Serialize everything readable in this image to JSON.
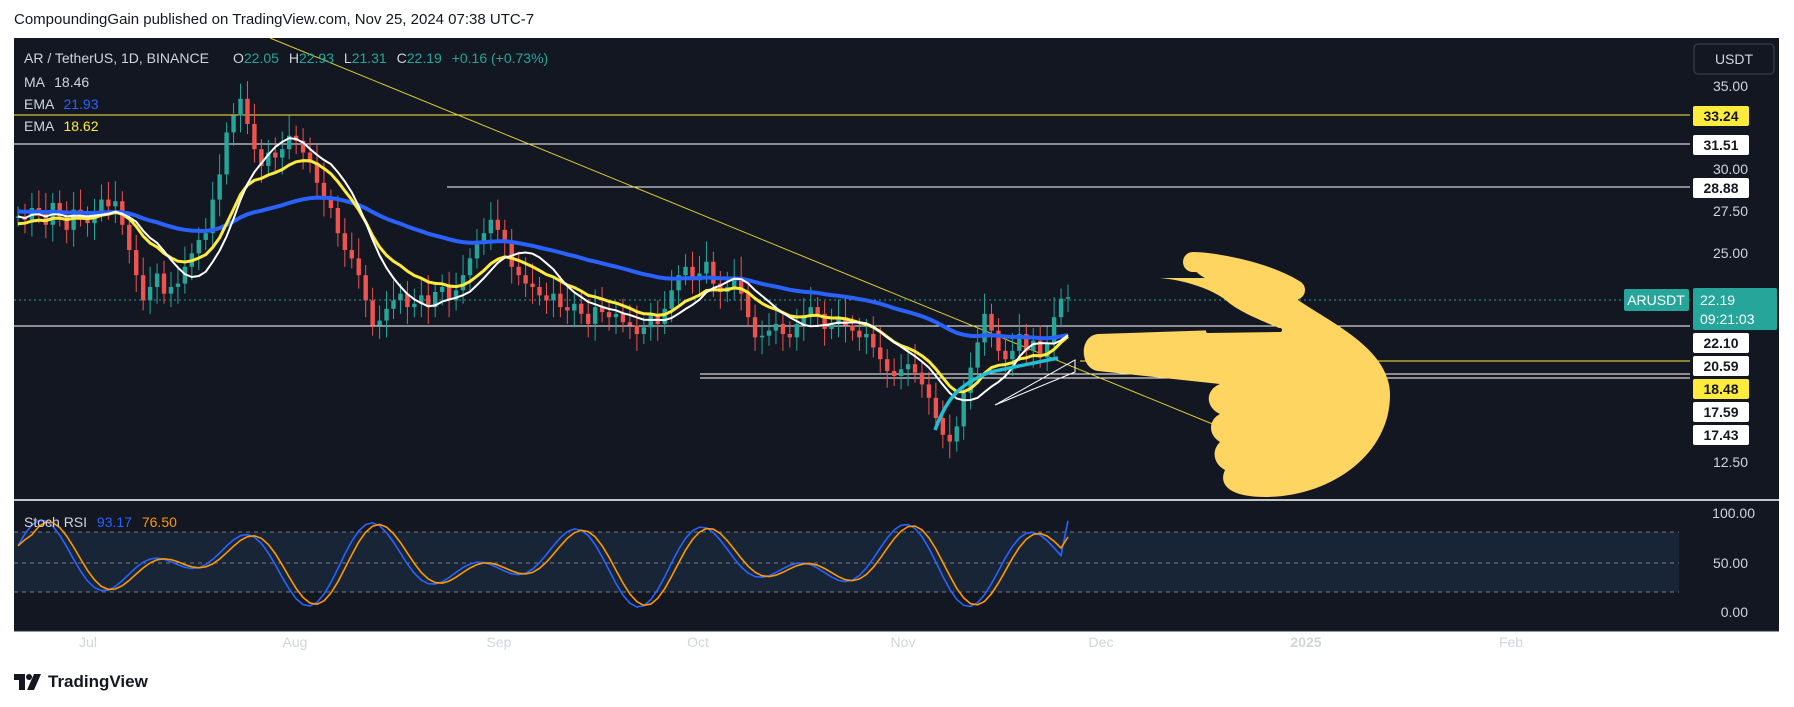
{
  "header": {
    "published_by": "CompoundingGain published on TradingView.com, Nov 25, 2024 07:38 UTC-7"
  },
  "footer": {
    "brand": "TradingView"
  },
  "colors": {
    "background": "#131722",
    "bull": "#26a69a",
    "bear": "#ef5350",
    "ema_long": "#2962ff",
    "ema_short": "#ffeb3b",
    "ma": "#ffffff",
    "stoch_k": "#2962ff",
    "stoch_d": "#ff9800",
    "hand": "#ffd561"
  },
  "chart_data": [
    {
      "type": "candlestick",
      "symbol_line": "AR / TetherUS, 1D, BINANCE",
      "ohlc": {
        "o_label": "O",
        "o": "22.05",
        "h_label": "H",
        "h": "22.93",
        "l_label": "L",
        "l": "21.31",
        "c_label": "C",
        "c": "22.19",
        "change": "+0.16 (+0.73%)"
      },
      "currency": "USDT",
      "indicators": [
        {
          "name": "MA",
          "value": "18.46",
          "color": "#ffffff"
        },
        {
          "name": "EMA",
          "value": "21.93",
          "color": "#2962ff"
        },
        {
          "name": "EMA",
          "value": "18.62",
          "color": "#ffeb3b"
        }
      ],
      "y_ticks": [
        "35.00",
        "30.00",
        "27.50",
        "25.00",
        "12.50"
      ],
      "level_labels": [
        {
          "value": "33.24",
          "style": "yellow"
        },
        {
          "value": "31.51",
          "style": "white"
        },
        {
          "value": "28.88",
          "style": "white"
        },
        {
          "value": "22.10",
          "style": "white"
        },
        {
          "value": "20.59",
          "style": "white"
        },
        {
          "value": "18.48",
          "style": "yellow"
        },
        {
          "value": "17.59",
          "style": "white"
        },
        {
          "value": "17.43",
          "style": "white"
        }
      ],
      "price_tag": {
        "symbol": "ARUSDT",
        "price": "22.19",
        "countdown": "09:21:03"
      },
      "x_ticks": [
        "Jul",
        "Aug",
        "Sep",
        "Oct",
        "Nov",
        "Dec",
        "2025",
        "Feb"
      ],
      "closes_approx": [
        27.0,
        26.8,
        27.5,
        27.2,
        26.5,
        27.8,
        27.0,
        26.2,
        27.4,
        27.0,
        26.6,
        27.3,
        28.0,
        27.6,
        27.9,
        26.5,
        25.0,
        23.5,
        22.0,
        22.8,
        23.6,
        22.4,
        22.8,
        23.0,
        24.0,
        24.8,
        25.6,
        26.0,
        28.0,
        29.5,
        32.0,
        33.0,
        34.0,
        32.5,
        31.0,
        30.0,
        30.8,
        30.5,
        31.0,
        31.8,
        31.5,
        30.8,
        30.2,
        29.0,
        28.0,
        27.5,
        26.0,
        25.0,
        24.5,
        23.5,
        22.0,
        20.5,
        20.8,
        21.5,
        22.0,
        22.4,
        21.6,
        21.8,
        22.3,
        21.6,
        22.5,
        22.8,
        22.0,
        22.6,
        23.5,
        24.5,
        25.5,
        26.0,
        26.8,
        26.2,
        25.5,
        24.0,
        23.5,
        23.0,
        22.8,
        22.3,
        22.0,
        22.4,
        21.6,
        21.4,
        21.8,
        21.2,
        20.6,
        21.6,
        21.3,
        21.0,
        21.2,
        20.7,
        20.5,
        20.0,
        20.4,
        21.1,
        20.6,
        21.5,
        22.6,
        23.5,
        24.0,
        23.2,
        23.6,
        24.3,
        23.0,
        22.5,
        22.8,
        23.4,
        22.4,
        21.0,
        19.8,
        19.9,
        20.2,
        20.6,
        20.0,
        19.8,
        20.6,
        21.1,
        21.6,
        21.2,
        20.3,
        20.6,
        21.0,
        20.5,
        20.2,
        19.8,
        20.0,
        19.2,
        18.5,
        17.8,
        17.5,
        17.9,
        18.2,
        17.7,
        17.0,
        16.2,
        15.0,
        14.0,
        13.6,
        14.5,
        16.5,
        18.0,
        19.5,
        21.2,
        20.2,
        19.0,
        18.5,
        19.0,
        20.0,
        19.0,
        19.6,
        18.6,
        19.4,
        21.0,
        22.1,
        22.19
      ]
    },
    {
      "type": "line",
      "title": "Stoch RSI",
      "series": [
        {
          "name": "K",
          "value": "93.17",
          "color": "#2962ff"
        },
        {
          "name": "D",
          "value": "76.50",
          "color": "#ff9800"
        }
      ],
      "y_ticks": [
        "100.00",
        "50.00",
        "0.00"
      ],
      "bands": [
        20,
        50,
        80
      ],
      "ylim": [
        0,
        100
      ]
    }
  ]
}
